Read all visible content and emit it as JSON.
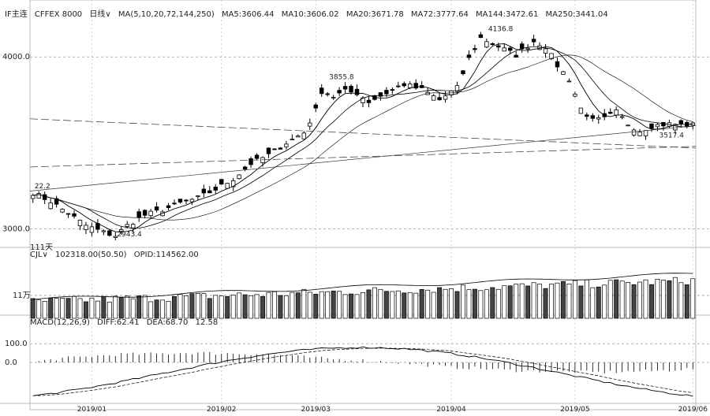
{
  "header": {
    "symbol": "IF主连",
    "market": "CFFEX 8000",
    "period": "日线",
    "ma_label": "MA(5,10,20,72,144,250)",
    "ma5": "MA5:3606.44",
    "ma10": "MA10:3606.02",
    "ma20": "MA20:3671.78",
    "ma72": "MA72:3777.64",
    "ma144": "MA144:3472.61",
    "ma250": "MA250:3441.04"
  },
  "volume_header": {
    "name": "CJL",
    "cjl": "102318.00(50.50)",
    "opid": "OPID:114562.00"
  },
  "macd_header": {
    "name": "MACD(12,26,9)",
    "diff": "DIFF:62.41",
    "dea": "DEA:68.70",
    "macd": "12.58"
  },
  "annotations": {
    "low_count": "111天",
    "low": "2943.4",
    "start": "22.2",
    "peak1": "3855.8",
    "peak2": "4136.8",
    "recent_low": "3517.4"
  },
  "price_axis": {
    "ticks": [
      {
        "value": 4000,
        "label": "4000.0"
      },
      {
        "value": 3000,
        "label": "3000.0"
      }
    ],
    "ylim": [
      2920,
      4230
    ]
  },
  "volume_axis": {
    "ticks": [
      {
        "value": 110000,
        "label": "11万"
      }
    ],
    "ylim": [
      0,
      280000
    ]
  },
  "macd_axis": {
    "ticks": [
      {
        "value": 100,
        "label": "100.0"
      },
      {
        "value": 0,
        "label": "0.0"
      }
    ],
    "ylim": [
      -210,
      185
    ]
  },
  "x_axis": {
    "ticks": [
      {
        "index": 10,
        "label": "2019/01"
      },
      {
        "index": 32,
        "label": "2019/02"
      },
      {
        "index": 48,
        "label": "2019/03"
      },
      {
        "index": 71,
        "label": "2019/04"
      },
      {
        "index": 92,
        "label": "2019/05"
      },
      {
        "index": 112,
        "label": "2019/06"
      }
    ]
  },
  "colors": {
    "grid": "#9a9a9a",
    "candle": "#000000",
    "volume_down": "#444444",
    "ma": "#000000"
  },
  "chart_data": {
    "type": "candlestick",
    "series": [
      {
        "name": "IF主连",
        "close_path": [
          [
            0,
            3210
          ],
          [
            3,
            3160
          ],
          [
            6,
            3090
          ],
          [
            9,
            3020
          ],
          [
            12,
            2980
          ],
          [
            14,
            2960
          ],
          [
            16,
            3020
          ],
          [
            19,
            3080
          ],
          [
            22,
            3110
          ],
          [
            25,
            3150
          ],
          [
            28,
            3180
          ],
          [
            31,
            3230
          ],
          [
            34,
            3290
          ],
          [
            37,
            3380
          ],
          [
            40,
            3430
          ],
          [
            43,
            3500
          ],
          [
            46,
            3560
          ],
          [
            48,
            3690
          ],
          [
            49,
            3800
          ],
          [
            51,
            3770
          ],
          [
            53,
            3800
          ],
          [
            55,
            3790
          ],
          [
            57,
            3740
          ],
          [
            60,
            3790
          ],
          [
            63,
            3840
          ],
          [
            66,
            3810
          ],
          [
            69,
            3750
          ],
          [
            72,
            3820
          ],
          [
            74,
            3990
          ],
          [
            76,
            4110
          ],
          [
            79,
            4060
          ],
          [
            82,
            4010
          ],
          [
            85,
            4090
          ],
          [
            87,
            4060
          ],
          [
            89,
            3950
          ],
          [
            91,
            3870
          ],
          [
            93,
            3700
          ],
          [
            95,
            3630
          ],
          [
            97,
            3640
          ],
          [
            99,
            3680
          ],
          [
            101,
            3610
          ],
          [
            103,
            3570
          ],
          [
            105,
            3600
          ],
          [
            108,
            3610
          ],
          [
            111,
            3605
          ]
        ]
      }
    ],
    "annotations": [
      {
        "x": 0,
        "y": 3222,
        "text": "22.2"
      },
      {
        "x": 14,
        "y": 2943.4,
        "text": "2943.4"
      },
      {
        "x": 50,
        "y": 3855.8,
        "text": "3855.8"
      },
      {
        "x": 77,
        "y": 4136.8,
        "text": "4136.8"
      },
      {
        "x": 106,
        "y": 3517.4,
        "text": "3517.4"
      }
    ]
  }
}
